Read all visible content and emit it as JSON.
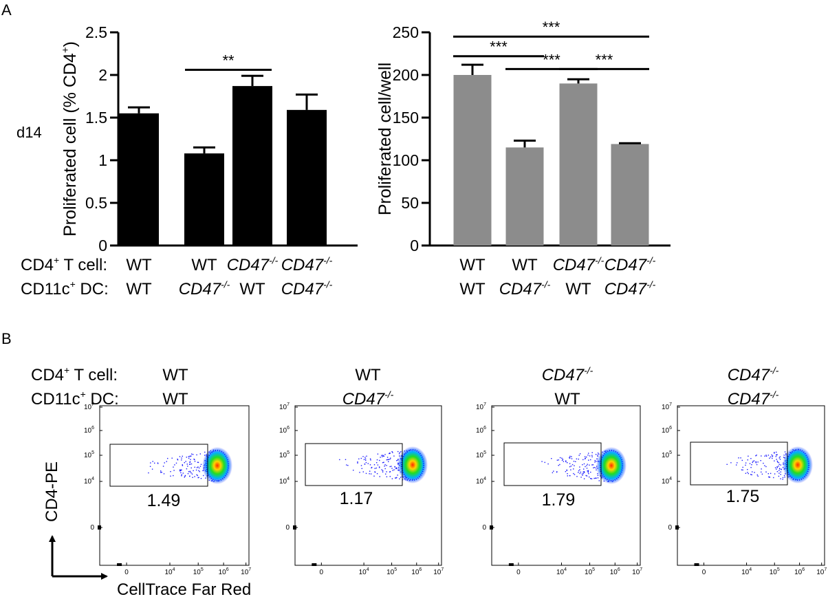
{
  "panel_a_label": "A",
  "panel_b_label": "B",
  "row_label": "d14",
  "condition_labels": {
    "cd4_prefix": "CD4",
    "cd4_suffix": " T cell:",
    "cd11c_prefix": "CD11c",
    "cd11c_suffix": " DC:",
    "plus": "+"
  },
  "genotypes": {
    "wt": "WT",
    "ko_base": "CD47",
    "ko_sup": "-/-"
  },
  "groups": [
    {
      "tcell": "wt",
      "dc": "wt"
    },
    {
      "tcell": "wt",
      "dc": "ko"
    },
    {
      "tcell": "ko",
      "dc": "wt"
    },
    {
      "tcell": "ko",
      "dc": "ko"
    }
  ],
  "chart_data": [
    {
      "type": "bar",
      "id": "left",
      "ylabel_main": "Proliferated cell (% CD4",
      "ylabel_sup": "+",
      "ylabel_close": ")",
      "ylim": [
        0,
        2.5
      ],
      "yticks": [
        0,
        0.5,
        1,
        1.5,
        2,
        2.5
      ],
      "ytick_labels": [
        "0",
        "0.5",
        "1",
        "1.5",
        "2",
        "2.5"
      ],
      "categories": [
        "WT/WT",
        "WT/CD47-/-",
        "CD47-/-/WT",
        "CD47-/-/CD47-/-"
      ],
      "values": [
        1.55,
        1.08,
        1.87,
        1.59
      ],
      "errors": [
        0.07,
        0.07,
        0.12,
        0.18
      ],
      "bar_color": "#000000",
      "significance": [
        {
          "from": 1,
          "to": 2,
          "level": 2.06,
          "label": "**"
        }
      ]
    },
    {
      "type": "bar",
      "id": "right",
      "ylabel_main": "Proliferated cell/well",
      "ylim": [
        0,
        250
      ],
      "yticks": [
        0,
        50,
        100,
        150,
        200,
        250
      ],
      "ytick_labels": [
        "0",
        "50",
        "100",
        "150",
        "200",
        "250"
      ],
      "categories": [
        "WT/WT",
        "WT/CD47-/-",
        "CD47-/-/WT",
        "CD47-/-/CD47-/-"
      ],
      "values": [
        200,
        115,
        190,
        119
      ],
      "errors": [
        12,
        8,
        5,
        1
      ],
      "bar_color": "#8c8c8c",
      "significance": [
        {
          "from": 0,
          "to": 3,
          "level": 245,
          "label": "***"
        },
        {
          "from": 0,
          "to": 1,
          "level": 222,
          "label": "***"
        },
        {
          "from": 1,
          "to": 2,
          "level": 207,
          "label": "***"
        },
        {
          "from": 2,
          "to": 3,
          "level": 207,
          "label": "***"
        }
      ]
    }
  ],
  "flow": {
    "y_axis_label": "CD4-PE",
    "x_axis_label": "CellTrace Far Red",
    "y_ticks": [
      {
        "base": "10",
        "exp": "7"
      },
      {
        "base": "10",
        "exp": "6"
      },
      {
        "base": "10",
        "exp": "5"
      },
      {
        "base": "10",
        "exp": "4"
      },
      {
        "base": "0",
        "exp": ""
      }
    ],
    "x_ticks": [
      {
        "base": "0",
        "exp": ""
      },
      {
        "base": "10",
        "exp": "4"
      },
      {
        "base": "10",
        "exp": "5"
      },
      {
        "base": "10",
        "exp": "6"
      },
      {
        "base": "10",
        "exp": "7"
      }
    ],
    "gate_values": [
      "1.49",
      "1.17",
      "1.79",
      "1.75"
    ]
  }
}
